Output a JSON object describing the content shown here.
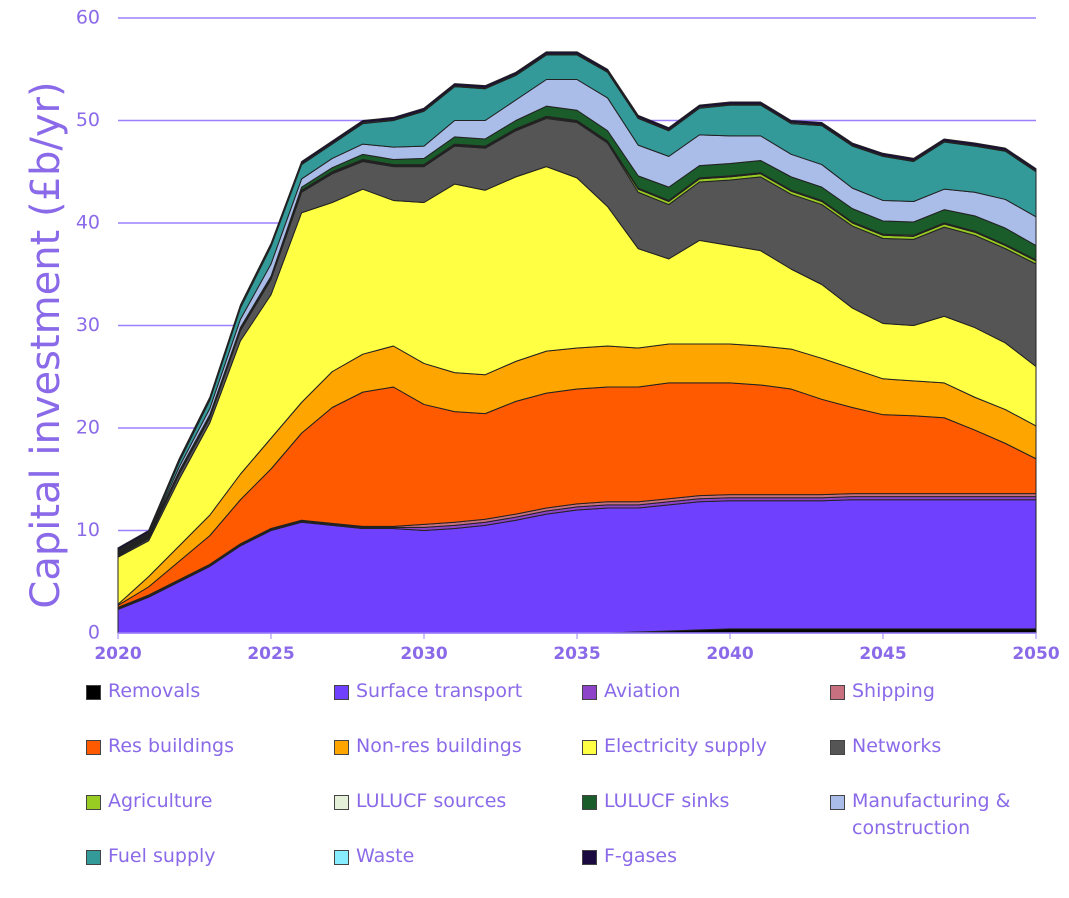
{
  "chart_data": {
    "type": "stacked-area",
    "y_label": "Capital investment (£b/yr)",
    "x": [
      2020,
      2021,
      2022,
      2023,
      2024,
      2025,
      2026,
      2027,
      2028,
      2029,
      2030,
      2031,
      2032,
      2033,
      2034,
      2035,
      2036,
      2037,
      2038,
      2039,
      2040,
      2041,
      2042,
      2043,
      2044,
      2045,
      2046,
      2047,
      2048,
      2049,
      2050
    ],
    "xlim": [
      2020,
      2050
    ],
    "xticks": [
      2020,
      2025,
      2030,
      2035,
      2040,
      2045,
      2050
    ],
    "ylim": [
      0,
      60
    ],
    "yticks": [
      0,
      10,
      20,
      30,
      40,
      50,
      60
    ],
    "grid": true,
    "series": [
      {
        "name": "Removals",
        "color": "#000000",
        "values": [
          0,
          0,
          0,
          0,
          0,
          0,
          0,
          0,
          0,
          0,
          0,
          0,
          0,
          0,
          0,
          0,
          0,
          0.1,
          0.2,
          0.3,
          0.4,
          0.4,
          0.4,
          0.4,
          0.4,
          0.4,
          0.4,
          0.4,
          0.4,
          0.4,
          0.4
        ]
      },
      {
        "name": "Surface transport",
        "color": "#7040ff",
        "values": [
          2.3,
          3.5,
          5,
          6.5,
          8.5,
          10,
          10.8,
          10.5,
          10.2,
          10.2,
          10,
          10.2,
          10.5,
          11,
          11.6,
          12,
          12.2,
          12.1,
          12.3,
          12.5,
          12.5,
          12.5,
          12.5,
          12.5,
          12.6,
          12.6,
          12.6,
          12.6,
          12.6,
          12.6,
          12.6
        ]
      },
      {
        "name": "Aviation",
        "color": "#8e44c8",
        "values": [
          0.1,
          0.1,
          0.1,
          0.1,
          0.1,
          0.1,
          0.1,
          0.1,
          0.1,
          0.1,
          0.3,
          0.3,
          0.3,
          0.3,
          0.3,
          0.3,
          0.3,
          0.3,
          0.3,
          0.3,
          0.3,
          0.3,
          0.3,
          0.3,
          0.3,
          0.3,
          0.3,
          0.3,
          0.3,
          0.3,
          0.3
        ]
      },
      {
        "name": "Shipping",
        "color": "#c87080",
        "values": [
          0.1,
          0.1,
          0.1,
          0.1,
          0.1,
          0.1,
          0.1,
          0.1,
          0.1,
          0.1,
          0.3,
          0.3,
          0.3,
          0.3,
          0.3,
          0.3,
          0.3,
          0.3,
          0.3,
          0.3,
          0.3,
          0.3,
          0.3,
          0.3,
          0.3,
          0.3,
          0.3,
          0.3,
          0.3,
          0.3,
          0.3
        ]
      },
      {
        "name": "Res buildings",
        "color": "#ff5a00",
        "values": [
          0.2,
          0.8,
          1.8,
          2.8,
          4.3,
          5.8,
          8.5,
          11.3,
          13.1,
          13.6,
          11.7,
          10.8,
          10.3,
          11,
          11.2,
          11.2,
          11.2,
          11.2,
          11.3,
          11,
          10.9,
          10.7,
          10.3,
          9.3,
          8.4,
          7.7,
          7.6,
          7.4,
          6.2,
          4.9,
          3.4
        ]
      },
      {
        "name": "Non-res buildings",
        "color": "#ffa500",
        "values": [
          0.1,
          1,
          1.5,
          2,
          2.5,
          3,
          3,
          3.5,
          3.7,
          4,
          4,
          3.8,
          3.8,
          3.9,
          4.1,
          4,
          4,
          3.8,
          3.8,
          3.8,
          3.8,
          3.8,
          3.9,
          4,
          3.8,
          3.5,
          3.4,
          3.4,
          3.2,
          3.3,
          3.2
        ]
      },
      {
        "name": "Electricity supply",
        "color": "#ffff44",
        "values": [
          4.6,
          3.5,
          6.5,
          9,
          13,
          14,
          18.5,
          16.5,
          16.1,
          14.2,
          15.7,
          18.4,
          18,
          18,
          18,
          16.6,
          13.6,
          9.7,
          8.3,
          10.1,
          9.6,
          9.3,
          7.8,
          7.2,
          5.9,
          5.4,
          5.4,
          6.5,
          6.8,
          6.5,
          5.8
        ]
      },
      {
        "name": "Networks",
        "color": "#555555",
        "values": [
          0.1,
          0.2,
          0.5,
          0.5,
          1,
          1.5,
          2,
          2.8,
          2.7,
          3.3,
          3.5,
          3.7,
          4.1,
          4.5,
          4.7,
          5.4,
          6.2,
          5.5,
          5.3,
          5.7,
          6.4,
          7.2,
          7.3,
          7.8,
          8,
          8.3,
          8.4,
          8.7,
          9,
          9.2,
          10
        ]
      },
      {
        "name": "Agriculture",
        "color": "#99cc22",
        "values": [
          0.1,
          0.1,
          0.1,
          0.1,
          0.1,
          0.1,
          0.1,
          0.1,
          0.1,
          0.1,
          0.1,
          0.1,
          0.1,
          0.1,
          0.1,
          0.1,
          0.1,
          0.3,
          0.3,
          0.3,
          0.3,
          0.3,
          0.3,
          0.3,
          0.3,
          0.3,
          0.3,
          0.3,
          0.3,
          0.3,
          0.3
        ]
      },
      {
        "name": "LULUCF sources",
        "color": "#e4f0d8",
        "values": [
          0.1,
          0.1,
          0.1,
          0.1,
          0.1,
          0.1,
          0.1,
          0.1,
          0.1,
          0.1,
          0.1,
          0.1,
          0.1,
          0.1,
          0.1,
          0.1,
          0.1,
          0.1,
          0.1,
          0.1,
          0.1,
          0.1,
          0.1,
          0.1,
          0.1,
          0.1,
          0.1,
          0.1,
          0.1,
          0.1,
          0.1
        ]
      },
      {
        "name": "LULUCF sinks",
        "color": "#1a5c2a",
        "values": [
          0.1,
          0.1,
          0.1,
          0.1,
          0.1,
          0.1,
          0.3,
          0.4,
          0.5,
          0.5,
          0.6,
          0.7,
          0.7,
          0.8,
          1,
          1,
          1,
          1.2,
          1.3,
          1.2,
          1.2,
          1.2,
          1.3,
          1.3,
          1.3,
          1.3,
          1.3,
          1.3,
          1.5,
          1.6,
          1.4
        ]
      },
      {
        "name": "Manufacturing & construction",
        "color": "#aabce8",
        "values": [
          0.1,
          0.1,
          0.4,
          0.6,
          0.8,
          1.2,
          0.8,
          0.9,
          1,
          1.2,
          1.2,
          1.6,
          1.8,
          2,
          2.6,
          3,
          3.2,
          3,
          3,
          3,
          2.7,
          2.4,
          2.2,
          2.2,
          2,
          2,
          2,
          2,
          2.3,
          2.8,
          2.8
        ]
      },
      {
        "name": "Fuel supply",
        "color": "#339999",
        "values": [
          0.1,
          0.1,
          0.5,
          0.8,
          1.1,
          1.7,
          1.4,
          1.4,
          2,
          2.6,
          3.4,
          3.3,
          3.1,
          2.4,
          2.4,
          2.4,
          2.5,
          2.6,
          2.5,
          2.6,
          3,
          3,
          3,
          3.8,
          4.1,
          4.3,
          3.9,
          4.6,
          4.5,
          4.7,
          4.4
        ]
      },
      {
        "name": "Waste",
        "color": "#88eeff",
        "values": [
          0.1,
          0.1,
          0.1,
          0.1,
          0.1,
          0.1,
          0.1,
          0.1,
          0.1,
          0.1,
          0.1,
          0.1,
          0.1,
          0.1,
          0.1,
          0.1,
          0.1,
          0.1,
          0.1,
          0.1,
          0.1,
          0.1,
          0.1,
          0.1,
          0.1,
          0.1,
          0.1,
          0.1,
          0.1,
          0.1,
          0.1
        ]
      },
      {
        "name": "F-gases",
        "color": "#1a0a40",
        "values": [
          0.2,
          0.2,
          0.2,
          0.2,
          0.2,
          0.2,
          0.2,
          0.2,
          0.2,
          0.2,
          0.2,
          0.2,
          0.2,
          0.2,
          0.2,
          0.2,
          0.2,
          0.2,
          0.2,
          0.2,
          0.2,
          0.2,
          0.2,
          0.2,
          0.2,
          0.2,
          0.2,
          0.2,
          0.2,
          0.2,
          0.2
        ]
      }
    ]
  }
}
